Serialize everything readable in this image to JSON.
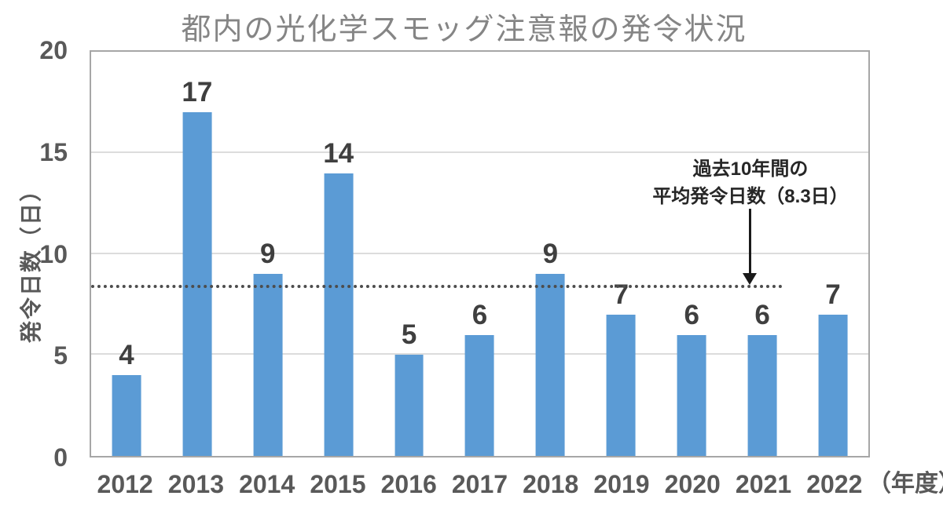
{
  "chart_data": {
    "type": "bar",
    "title": "都内の光化学スモッグ注意報の発令状況",
    "categories": [
      "2012",
      "2013",
      "2014",
      "2015",
      "2016",
      "2017",
      "2018",
      "2019",
      "2020",
      "2021",
      "2022"
    ],
    "values": [
      4,
      17,
      9,
      14,
      5,
      6,
      9,
      7,
      6,
      6,
      7
    ],
    "data_labels_shown": true,
    "xlabel_suffix": "（年度）",
    "ylabel": "発令日数（日）",
    "ylim": [
      0,
      20
    ],
    "y_ticks": [
      0,
      5,
      10,
      15,
      20
    ],
    "grid": true,
    "legend": "none",
    "bar_color": "#5B9BD5",
    "average_line": {
      "value": 8.3,
      "style": "dotted",
      "color": "#4d4d4d",
      "label_line1": "過去10年間の",
      "label_line2": "平均発令日数（8.3日）"
    }
  }
}
